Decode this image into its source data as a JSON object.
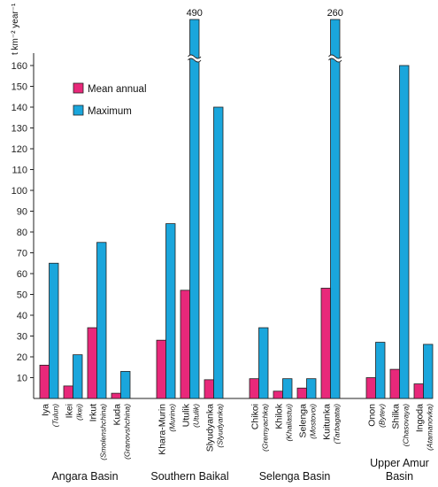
{
  "chart_data": {
    "type": "bar",
    "ylabel": "t km⁻² year⁻¹",
    "ylim": [
      0,
      170
    ],
    "yticks": [
      10,
      20,
      30,
      40,
      50,
      60,
      70,
      80,
      90,
      100,
      110,
      120,
      130,
      140,
      150,
      160
    ],
    "grid": false,
    "legend_position": "top-left",
    "series": [
      {
        "name": "Mean annual",
        "color": "#e8287a"
      },
      {
        "name": "Maximum",
        "color": "#1aa6dc"
      }
    ],
    "groups": [
      {
        "name": "Angara Basin",
        "rivers": [
          {
            "name": "Iya",
            "station": "(Tulun)",
            "mean": 16,
            "max": 65
          },
          {
            "name": "Ikei",
            "station": "(Ikei)",
            "mean": 6,
            "max": 21
          },
          {
            "name": "Irkut",
            "station": "(Smolenshchina)",
            "mean": 34,
            "max": 75
          },
          {
            "name": "Kuda",
            "station": "(Granovshchina)",
            "mean": 2.5,
            "max": 13
          }
        ]
      },
      {
        "name": "Southern Baikal",
        "rivers": [
          {
            "name": "Khara-Murin",
            "station": "(Murino)",
            "mean": 28,
            "max": 84
          },
          {
            "name": "Utulik",
            "station": "(Utulik)",
            "mean": 52,
            "max": 490,
            "max_label": "490"
          },
          {
            "name": "Slyudyanka",
            "station": "(Slyudyanka)",
            "mean": 9,
            "max": 140
          }
        ]
      },
      {
        "name": "Selenga Basin",
        "rivers": [
          {
            "name": "Chikoi",
            "station": "(Gremyachka)",
            "mean": 9.5,
            "max": 34
          },
          {
            "name": "Khilok",
            "station": "(Khailastui)",
            "mean": 3.5,
            "max": 9.5
          },
          {
            "name": "Selenga",
            "station": "(Mostovoi)",
            "mean": 5,
            "max": 9.5
          },
          {
            "name": "Kuitunka",
            "station": "(Tarbagatai)",
            "mean": 53,
            "max": 260,
            "max_label": "260"
          }
        ]
      },
      {
        "name": "Upper Amur Basin",
        "rivers": [
          {
            "name": "Onon",
            "station": "(Bytev)",
            "mean": 10,
            "max": 27
          },
          {
            "name": "Shilka",
            "station": "(Chasovaya)",
            "mean": 14,
            "max": 160
          },
          {
            "name": "Ingoda",
            "station": "(Atamanovka)",
            "mean": 7,
            "max": 26
          }
        ]
      }
    ]
  },
  "colors": {
    "mean": "#e8287a",
    "max": "#1aa6dc",
    "stroke": "#222222"
  }
}
